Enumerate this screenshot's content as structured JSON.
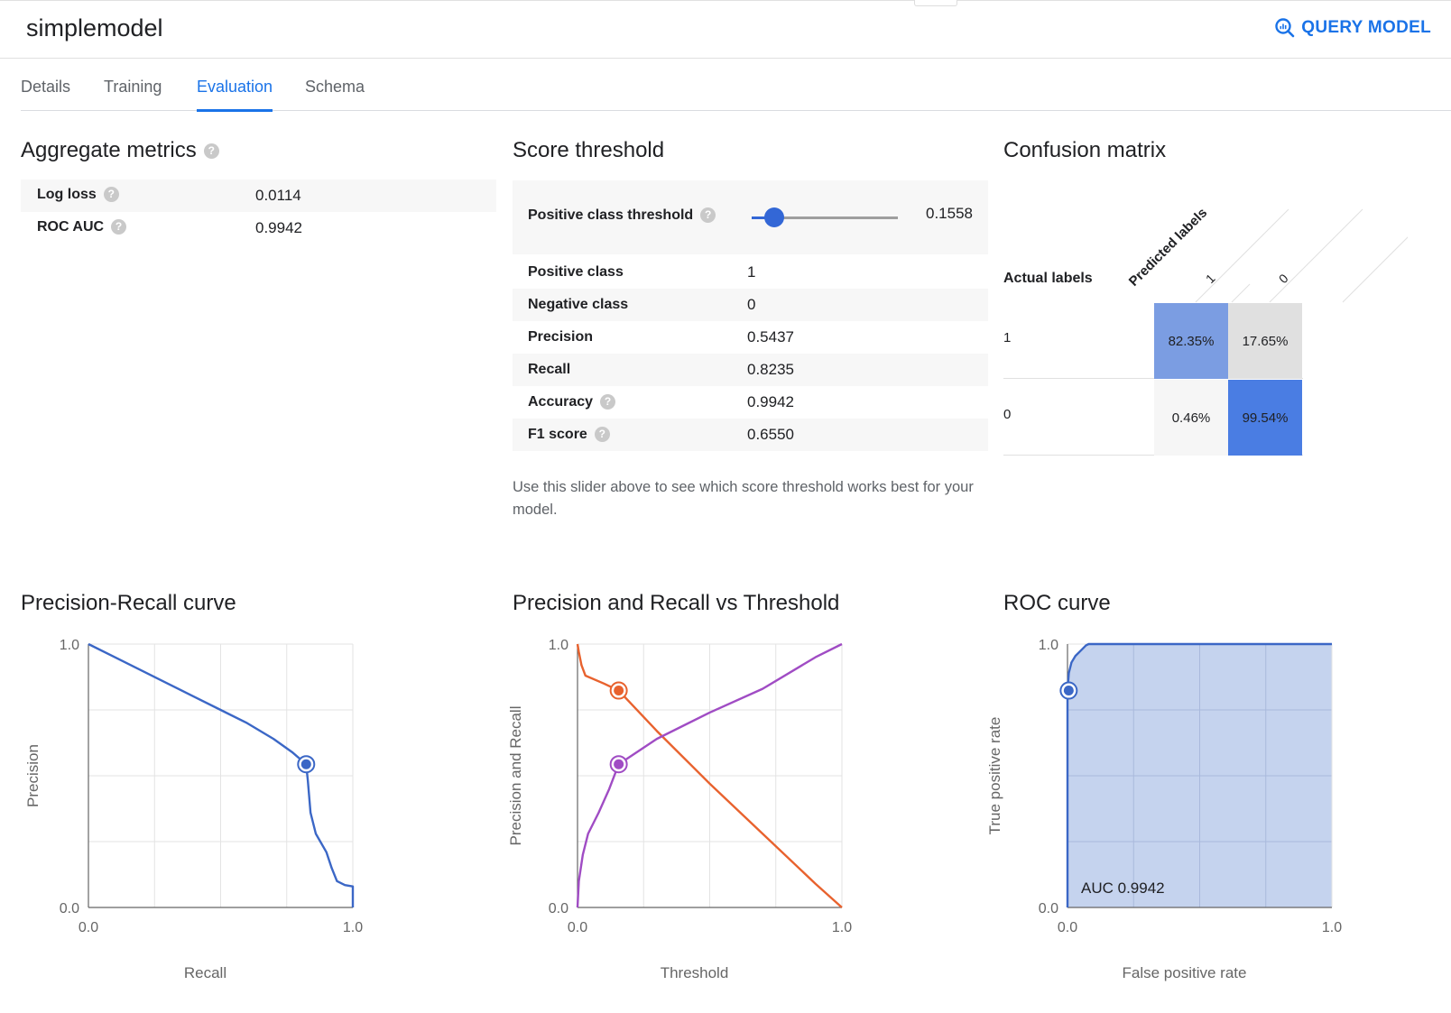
{
  "header": {
    "title": "simplemodel",
    "query_button": "QUERY MODEL"
  },
  "tabs": [
    {
      "label": "Details"
    },
    {
      "label": "Training"
    },
    {
      "label": "Evaluation",
      "active": true
    },
    {
      "label": "Schema"
    }
  ],
  "aggregate": {
    "title": "Aggregate metrics",
    "rows": [
      {
        "label": "Log loss",
        "value": "0.0114"
      },
      {
        "label": "ROC AUC",
        "value": "0.9942"
      }
    ]
  },
  "threshold": {
    "title": "Score threshold",
    "label": "Positive class threshold",
    "value": "0.1558",
    "slider_fraction": 0.1558,
    "rows": [
      {
        "label": "Positive class",
        "value": "1"
      },
      {
        "label": "Negative class",
        "value": "0"
      },
      {
        "label": "Precision",
        "value": "0.5437"
      },
      {
        "label": "Recall",
        "value": "0.8235"
      },
      {
        "label": "Accuracy",
        "value": "0.9942"
      },
      {
        "label": "F1 score",
        "value": "0.6550"
      }
    ],
    "hint": "Use this slider above to see which score threshold works best for your model."
  },
  "confusion": {
    "title": "Confusion matrix",
    "actual_label": "Actual labels",
    "predicted_label": "Predicted labels",
    "columns": [
      "1",
      "0"
    ],
    "rows": [
      {
        "label": "1",
        "cells": [
          "82.35%",
          "17.65%"
        ]
      },
      {
        "label": "0",
        "cells": [
          "0.46%",
          "99.54%"
        ]
      }
    ],
    "cell_fractions": [
      [
        0.8235,
        0.1765
      ],
      [
        0.0046,
        0.9954
      ]
    ],
    "colors": {
      "strong": "#4a7de3",
      "medium": "#7b9de2",
      "light": "#e0e0e0",
      "faint": "#f6f6f6"
    }
  },
  "chart_data": [
    {
      "type": "line",
      "title": "Precision-Recall curve",
      "xlabel": "Recall",
      "ylabel": "Precision",
      "xlim": [
        0,
        1
      ],
      "ylim": [
        0,
        1
      ],
      "tick_labels": {
        "x": [
          "0.0",
          "1.0"
        ],
        "y": [
          "0.0",
          "1.0"
        ]
      },
      "grid": true,
      "series": [
        {
          "color": "#3b67c6",
          "x": [
            0.0,
            0.1,
            0.2,
            0.3,
            0.4,
            0.5,
            0.6,
            0.7,
            0.77,
            0.8235,
            0.83,
            0.84,
            0.86,
            0.9,
            0.92,
            0.94,
            0.97,
            1.0,
            1.0
          ],
          "y": [
            1.0,
            0.95,
            0.9,
            0.85,
            0.8,
            0.75,
            0.7,
            0.64,
            0.59,
            0.5437,
            0.48,
            0.36,
            0.28,
            0.21,
            0.15,
            0.1,
            0.085,
            0.08,
            0.0
          ]
        }
      ],
      "marker": {
        "x": 0.8235,
        "y": 0.5437,
        "color": "#3b67c6"
      }
    },
    {
      "type": "line",
      "title": "Precision and Recall vs Threshold",
      "xlabel": "Threshold",
      "ylabel": "Precision and Recall",
      "xlim": [
        0,
        1
      ],
      "ylim": [
        0,
        1
      ],
      "tick_labels": {
        "x": [
          "0.0",
          "1.0"
        ],
        "y": [
          "0.0",
          "1.0"
        ]
      },
      "grid": true,
      "series": [
        {
          "color": "#e8622e",
          "x": [
            0.0,
            0.005,
            0.015,
            0.03,
            0.1,
            0.1558,
            0.3,
            0.5,
            0.7,
            0.9,
            1.0
          ],
          "y": [
            1.0,
            0.97,
            0.92,
            0.88,
            0.85,
            0.8235,
            0.67,
            0.47,
            0.28,
            0.09,
            0.0
          ]
        },
        {
          "color": "#a04cc4",
          "x": [
            0.0,
            0.005,
            0.02,
            0.04,
            0.08,
            0.12,
            0.1558,
            0.3,
            0.5,
            0.7,
            0.9,
            1.0
          ],
          "y": [
            0.0,
            0.1,
            0.2,
            0.28,
            0.36,
            0.45,
            0.5437,
            0.64,
            0.74,
            0.83,
            0.95,
            1.0
          ]
        }
      ],
      "markers": [
        {
          "x": 0.1558,
          "y": 0.8235,
          "color": "#e8622e"
        },
        {
          "x": 0.1558,
          "y": 0.5437,
          "color": "#a04cc4"
        }
      ]
    },
    {
      "type": "area",
      "title": "ROC curve",
      "xlabel": "False positive rate",
      "ylabel": "True positive rate",
      "xlim": [
        0,
        1
      ],
      "ylim": [
        0,
        1
      ],
      "tick_labels": {
        "x": [
          "0.0",
          "1.0"
        ],
        "y": [
          "0.0",
          "1.0"
        ]
      },
      "grid": true,
      "annotation": "AUC 0.9942",
      "series": [
        {
          "color": "#3b67c6",
          "fill": "#c5d3ee",
          "x": [
            0.0,
            0.0,
            0.005,
            0.015,
            0.03,
            0.05,
            0.07,
            0.08,
            1.0
          ],
          "y": [
            0.0,
            0.8235,
            0.89,
            0.93,
            0.955,
            0.975,
            0.995,
            1.0,
            1.0
          ]
        }
      ],
      "marker": {
        "x": 0.0046,
        "y": 0.8235,
        "color": "#3b67c6"
      }
    }
  ]
}
